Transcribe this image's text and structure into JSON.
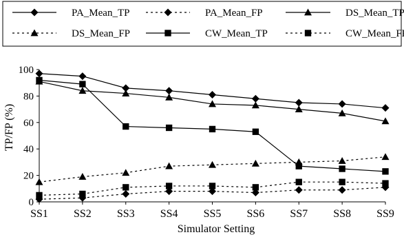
{
  "chart_data": {
    "type": "line",
    "title": "",
    "xlabel": "Simulator Setting",
    "ylabel": "TP/FP (%)",
    "ylim": [
      0,
      100
    ],
    "yticks": [
      0,
      20,
      40,
      60,
      80,
      100
    ],
    "grid": false,
    "legend_position": "top",
    "categories": [
      "SS1",
      "SS2",
      "SS3",
      "SS4",
      "SS5",
      "SS6",
      "SS7",
      "SS8",
      "SS9"
    ],
    "series": [
      {
        "name": "PA_Mean_TP",
        "marker": "diamond",
        "dash": "solid",
        "values": [
          97,
          95,
          86,
          84,
          81,
          78,
          75,
          74,
          71
        ]
      },
      {
        "name": "PA_Mean_FP",
        "marker": "diamond",
        "dash": "dotted",
        "values": [
          2,
          3,
          6,
          8,
          8,
          7,
          9,
          9,
          11
        ]
      },
      {
        "name": "DS_Mean_TP",
        "marker": "triangle",
        "dash": "solid",
        "values": [
          91,
          84,
          82,
          79,
          74,
          73,
          70,
          67,
          61
        ]
      },
      {
        "name": "DS_Mean_FP",
        "marker": "triangle",
        "dash": "dotted",
        "values": [
          15,
          19,
          22,
          27,
          28,
          29,
          30,
          31,
          34
        ]
      },
      {
        "name": "CW_Mean_TP",
        "marker": "square",
        "dash": "solid",
        "values": [
          92,
          89,
          57,
          56,
          55,
          53,
          27,
          25,
          23
        ]
      },
      {
        "name": "CW_Mean_FP",
        "marker": "square",
        "dash": "dotted",
        "values": [
          5,
          6,
          11,
          12,
          12,
          11,
          15,
          15,
          14
        ]
      }
    ]
  }
}
